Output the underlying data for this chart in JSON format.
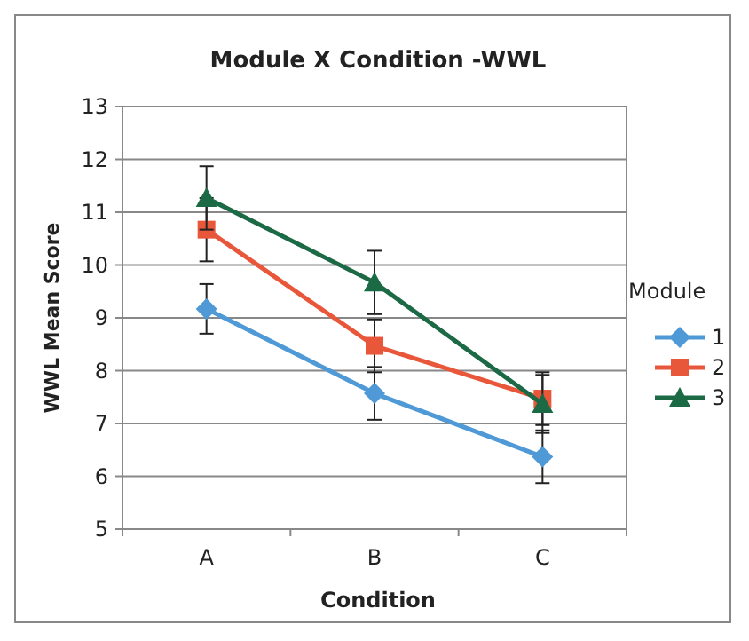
{
  "chart_data": {
    "type": "line",
    "title": "Module X Condition -WWL",
    "xlabel": "Condition",
    "ylabel": "WWL Mean Score",
    "legend_title": "Module",
    "categories": [
      "A",
      "B",
      "C"
    ],
    "series": [
      {
        "name": "1",
        "color": "#4f9ad6",
        "marker": "diamond",
        "values": [
          9.17,
          7.57,
          6.37
        ],
        "errors": [
          0.47,
          0.5,
          0.5
        ]
      },
      {
        "name": "2",
        "color": "#e8573a",
        "marker": "square",
        "values": [
          10.67,
          8.47,
          7.47
        ],
        "errors": [
          0.6,
          0.5,
          0.5
        ]
      },
      {
        "name": "3",
        "color": "#1c6a45",
        "marker": "triangle",
        "values": [
          11.27,
          9.67,
          7.37
        ],
        "errors": [
          0.6,
          0.6,
          0.55
        ]
      }
    ],
    "ylim": [
      5,
      13
    ],
    "yticks": [
      5,
      6,
      7,
      8,
      9,
      10,
      11,
      12,
      13
    ],
    "grid": "y",
    "legend": "right"
  }
}
